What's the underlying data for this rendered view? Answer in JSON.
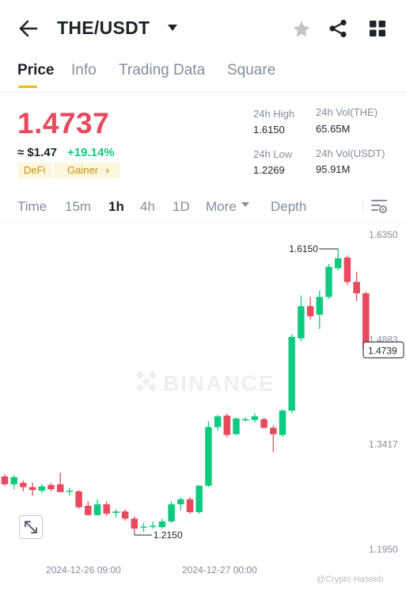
{
  "header": {
    "pair": "THE/USDT",
    "icons": [
      "back-arrow-icon",
      "caret-down-icon",
      "star-icon",
      "share-icon",
      "grid-icon"
    ]
  },
  "tabs": [
    {
      "label": "Price",
      "active": true
    },
    {
      "label": "Info",
      "active": false
    },
    {
      "label": "Trading Data",
      "active": false
    },
    {
      "label": "Square",
      "active": false
    }
  ],
  "ticker": {
    "price": "1.4737",
    "usd_price": "≈ $1.47",
    "change": "+19.14%",
    "tags": {
      "sector": "DeFi",
      "badge": "Gainer",
      "badge_chevron": "›"
    },
    "stats": {
      "high_label": "24h High",
      "high": "1.6150",
      "vol_base_label": "24h Vol(THE)",
      "vol_base": "65.65M",
      "low_label": "24h Low",
      "low": "1.2269",
      "vol_quote_label": "24h Vol(USDT)",
      "vol_quote": "95.91M"
    },
    "colors": {
      "down": "#e8495e",
      "up": "#0ecb81",
      "accent": "#f0b90b"
    }
  },
  "intervals": {
    "items": [
      {
        "label": "Time",
        "active": false
      },
      {
        "label": "15m",
        "active": false
      },
      {
        "label": "1h",
        "active": true
      },
      {
        "label": "4h",
        "active": false
      },
      {
        "label": "1D",
        "active": false
      },
      {
        "label": "More",
        "active": false
      },
      {
        "label": "Depth",
        "active": false
      }
    ]
  },
  "chart_data": {
    "type": "candlestick",
    "y_ticks": [
      "1.6350",
      "1.4883",
      "1.3417",
      "1.1950"
    ],
    "ylim": [
      1.195,
      1.635
    ],
    "x_ticks": [
      "2024-12-26 09:00",
      "2024-12-27 00:00"
    ],
    "watermark": "BINANCE",
    "credit": "@Crypto Haseeb",
    "current_price": "1.4739",
    "high_annotation": "1.6150",
    "low_annotation": "1.2150",
    "candles": [
      {
        "o": 1.297,
        "h": 1.3,
        "l": 1.284,
        "c": 1.286
      },
      {
        "o": 1.286,
        "h": 1.299,
        "l": 1.279,
        "c": 1.296
      },
      {
        "o": 1.288,
        "h": 1.291,
        "l": 1.276,
        "c": 1.282
      },
      {
        "o": 1.282,
        "h": 1.288,
        "l": 1.27,
        "c": 1.278
      },
      {
        "o": 1.277,
        "h": 1.286,
        "l": 1.274,
        "c": 1.283
      },
      {
        "o": 1.285,
        "h": 1.288,
        "l": 1.276,
        "c": 1.279
      },
      {
        "o": 1.286,
        "h": 1.302,
        "l": 1.276,
        "c": 1.275
      },
      {
        "o": 1.276,
        "h": 1.281,
        "l": 1.27,
        "c": 1.277
      },
      {
        "o": 1.276,
        "h": 1.278,
        "l": 1.252,
        "c": 1.254
      },
      {
        "o": 1.256,
        "h": 1.262,
        "l": 1.242,
        "c": 1.243
      },
      {
        "o": 1.243,
        "h": 1.265,
        "l": 1.242,
        "c": 1.258
      },
      {
        "o": 1.258,
        "h": 1.262,
        "l": 1.242,
        "c": 1.245
      },
      {
        "o": 1.246,
        "h": 1.251,
        "l": 1.24,
        "c": 1.248
      },
      {
        "o": 1.248,
        "h": 1.251,
        "l": 1.235,
        "c": 1.238
      },
      {
        "o": 1.238,
        "h": 1.241,
        "l": 1.215,
        "c": 1.224
      },
      {
        "o": 1.226,
        "h": 1.232,
        "l": 1.219,
        "c": 1.227
      },
      {
        "o": 1.227,
        "h": 1.234,
        "l": 1.224,
        "c": 1.228
      },
      {
        "o": 1.226,
        "h": 1.238,
        "l": 1.224,
        "c": 1.234
      },
      {
        "o": 1.234,
        "h": 1.262,
        "l": 1.232,
        "c": 1.258
      },
      {
        "o": 1.258,
        "h": 1.268,
        "l": 1.25,
        "c": 1.265
      },
      {
        "o": 1.265,
        "h": 1.268,
        "l": 1.245,
        "c": 1.247
      },
      {
        "o": 1.247,
        "h": 1.285,
        "l": 1.245,
        "c": 1.284
      },
      {
        "o": 1.284,
        "h": 1.374,
        "l": 1.282,
        "c": 1.366
      },
      {
        "o": 1.366,
        "h": 1.383,
        "l": 1.361,
        "c": 1.381
      },
      {
        "o": 1.382,
        "h": 1.385,
        "l": 1.352,
        "c": 1.355
      },
      {
        "o": 1.356,
        "h": 1.379,
        "l": 1.355,
        "c": 1.378
      },
      {
        "o": 1.377,
        "h": 1.38,
        "l": 1.374,
        "c": 1.377
      },
      {
        "o": 1.376,
        "h": 1.385,
        "l": 1.372,
        "c": 1.381
      },
      {
        "o": 1.377,
        "h": 1.379,
        "l": 1.364,
        "c": 1.365
      },
      {
        "o": 1.365,
        "h": 1.368,
        "l": 1.331,
        "c": 1.356
      },
      {
        "o": 1.355,
        "h": 1.391,
        "l": 1.352,
        "c": 1.389
      },
      {
        "o": 1.389,
        "h": 1.496,
        "l": 1.386,
        "c": 1.492
      },
      {
        "o": 1.49,
        "h": 1.55,
        "l": 1.486,
        "c": 1.535
      },
      {
        "o": 1.535,
        "h": 1.548,
        "l": 1.516,
        "c": 1.521
      },
      {
        "o": 1.523,
        "h": 1.557,
        "l": 1.503,
        "c": 1.548
      },
      {
        "o": 1.548,
        "h": 1.594,
        "l": 1.545,
        "c": 1.59
      },
      {
        "o": 1.588,
        "h": 1.615,
        "l": 1.585,
        "c": 1.602
      },
      {
        "o": 1.603,
        "h": 1.606,
        "l": 1.565,
        "c": 1.569
      },
      {
        "o": 1.569,
        "h": 1.583,
        "l": 1.542,
        "c": 1.553
      },
      {
        "o": 1.553,
        "h": 1.555,
        "l": 1.473,
        "c": 1.474
      }
    ]
  }
}
